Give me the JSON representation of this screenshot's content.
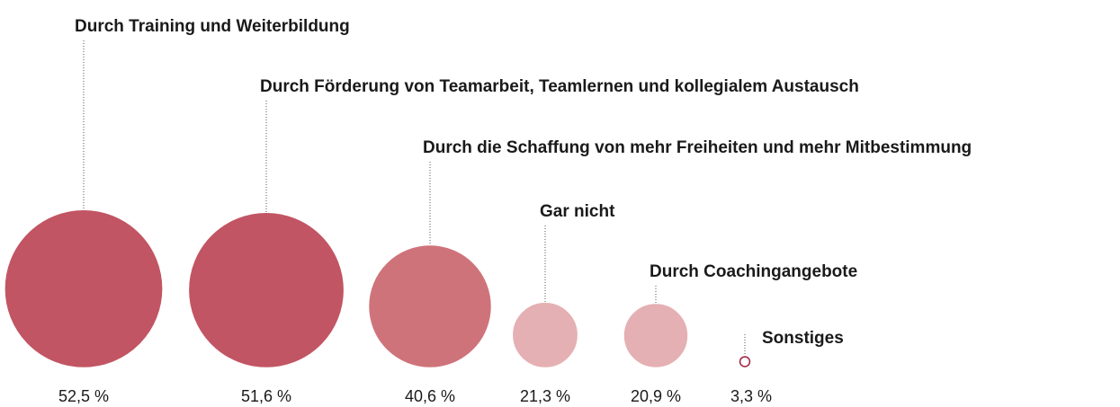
{
  "chart_data": {
    "type": "bubble",
    "categories": [
      "Durch Training und Weiterbildung",
      "Durch Förderung von Teamarbeit, Teamlernen und kollegialem Austausch",
      "Durch die Schaffung von mehr Freiheiten und mehr Mitbestimmung",
      "Gar nicht",
      "Durch Coachingangebote",
      "Sonstiges"
    ],
    "values": [
      52.5,
      51.6,
      40.6,
      21.3,
      20.9,
      3.3
    ],
    "value_labels": [
      "52,5 %",
      "51,6 %",
      "40,6 %",
      "21,3 %",
      "20,9 %",
      "3,3 %"
    ],
    "fills": [
      "#c25563",
      "#c25563",
      "#cf737a",
      "#e5b0b3",
      "#e5b0b3",
      "#ffffff"
    ],
    "strokes": [
      "#c25563",
      "#c25563",
      "#cf737a",
      "#e5b0b3",
      "#e5b0b3",
      "#a0203a"
    ]
  }
}
